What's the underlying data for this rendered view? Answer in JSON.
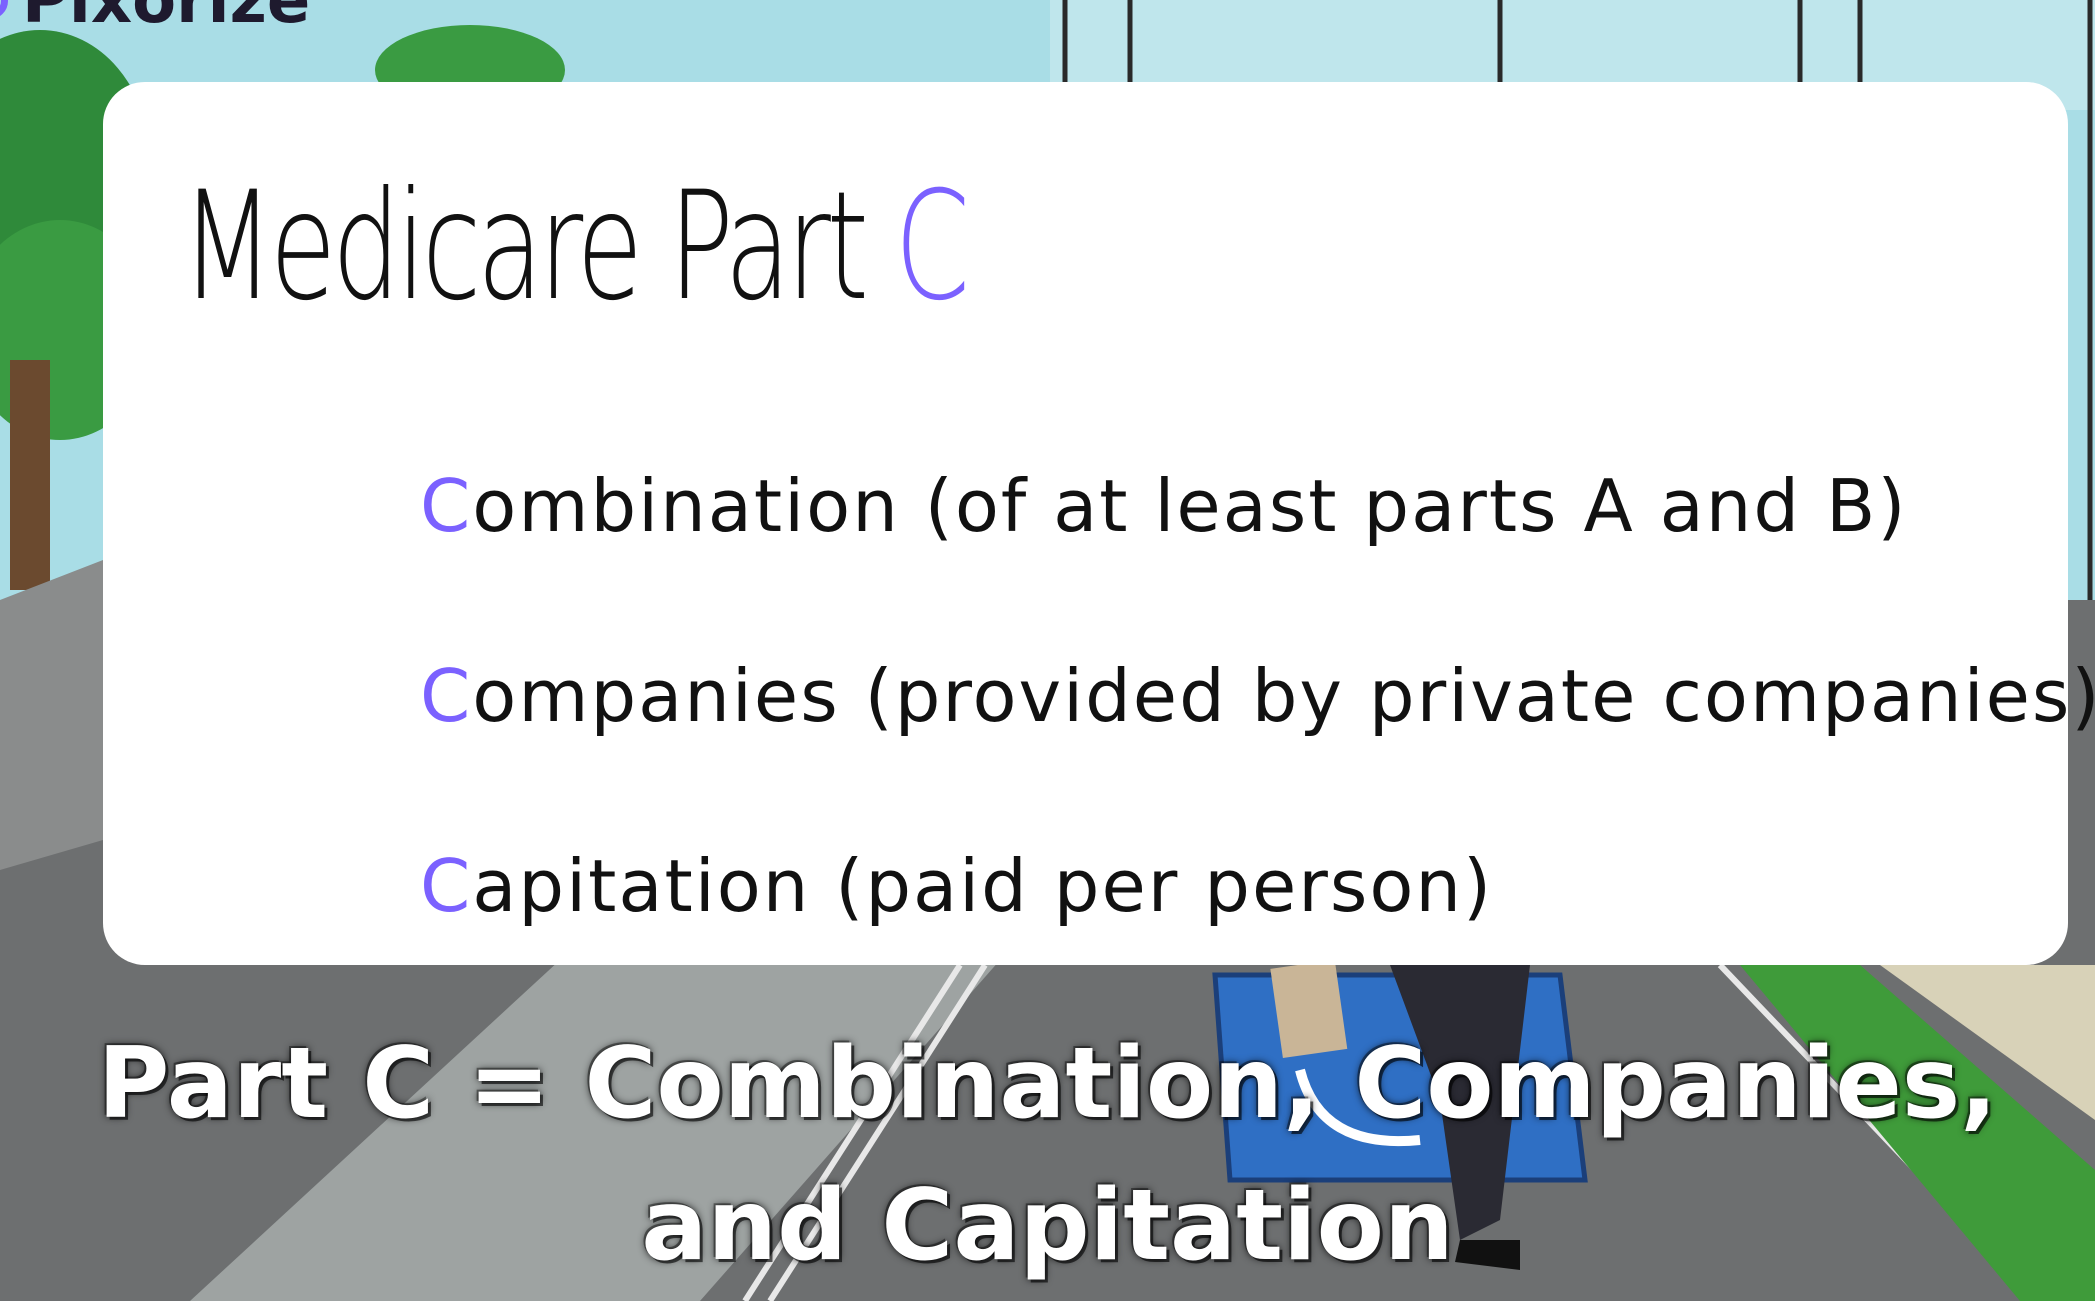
{
  "brand": {
    "logo_text": "Pixorize",
    "accent_color": "#7b61ff"
  },
  "card": {
    "title_main": "Medicare Part ",
    "title_accent": "C",
    "points": [
      {
        "initial": "C",
        "rest": "ombination (of at least parts A and B)"
      },
      {
        "initial": "C",
        "rest": "ompanies (provided by private companies)"
      },
      {
        "initial": "C",
        "rest": "apitation (paid per person)"
      }
    ]
  },
  "caption": {
    "line1": "Part C = Combination, Companies,",
    "line2": "and Capitation"
  },
  "colors": {
    "sky": "#a9dde6",
    "road": "#6d6f70",
    "grass": "#3f9b3a",
    "sign": "#2f6fc4"
  },
  "icons": {
    "background_sign": "wheelchair-parking-sign-icon"
  }
}
